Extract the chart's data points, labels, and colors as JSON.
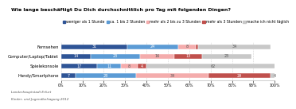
{
  "title": "Wie lange beschäftigt Du Dich durchschnittlich pro Tag mit folgenden Dingen?",
  "categories": [
    "Fernsehen",
    "Computer/Laptop/Tablet",
    "Spielekonsole",
    "Handy/Smartphone"
  ],
  "legend_labels": [
    "weniger als 1 Stunde",
    "ca. 1 bis 2 Stunden",
    "mehr als 2 bis zu 3 Stunden",
    "mehr als 3 Stunden",
    "mache ich nicht täglich"
  ],
  "values": [
    [
      31,
      24,
      8,
      1,
      34
    ],
    [
      14,
      23,
      16,
      13,
      23
    ],
    [
      17,
      11,
      8,
      4,
      62
    ],
    [
      7,
      28,
      34,
      29,
      4
    ]
  ],
  "colors": [
    "#2E5496",
    "#5B9BD5",
    "#F4ACAC",
    "#C0504D",
    "#C8C8C8"
  ],
  "text_colors": [
    "white",
    "white",
    "#555555",
    "white",
    "#555555"
  ],
  "footnote1": "Landeshauptstadt Erfurt",
  "footnote2": "Kinder- und Jugendbefragung 2012",
  "xlim": [
    0,
    100
  ],
  "title_fontsize": 4.5,
  "label_fontsize": 3.8,
  "bar_label_fontsize": 3.5,
  "legend_fontsize": 3.3,
  "footnote_fontsize": 3.0,
  "axis_fontsize": 3.4
}
